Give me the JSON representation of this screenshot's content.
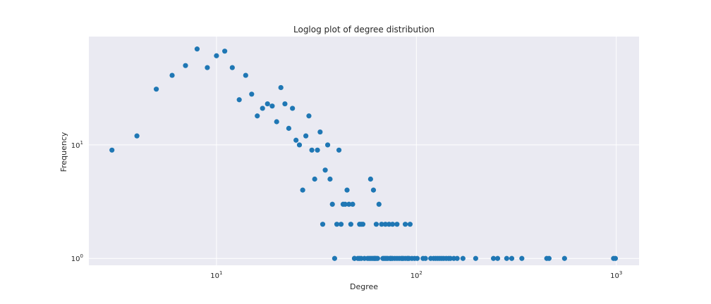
{
  "chart_data": {
    "type": "scatter",
    "title": "Loglog plot of degree distribution",
    "xlabel": "Degree",
    "ylabel": "Frequency",
    "xscale": "log",
    "yscale": "log",
    "xlim": [
      2.3,
      1300
    ],
    "ylim": [
      0.87,
      90
    ],
    "grid": true,
    "x_ticks": [
      {
        "value": 10,
        "base": "10",
        "exp": "1"
      },
      {
        "value": 100,
        "base": "10",
        "exp": "2"
      },
      {
        "value": 1000,
        "base": "10",
        "exp": "3"
      }
    ],
    "y_ticks": [
      {
        "value": 1,
        "base": "10",
        "exp": "0"
      },
      {
        "value": 10,
        "base": "10",
        "exp": "1"
      }
    ],
    "colors": {
      "marker": "#1f77b4",
      "plot_bg": "#eaeaf2",
      "grid": "#ffffff",
      "figure_bg": "#ffffff"
    },
    "series": [
      {
        "x": [
          3,
          4,
          5,
          6,
          7,
          8,
          9,
          10,
          11,
          12,
          13,
          14,
          15,
          16,
          17,
          18,
          19,
          20,
          21,
          22,
          23,
          24,
          25,
          26,
          27,
          28,
          29,
          30,
          31,
          32,
          33,
          34,
          35,
          36,
          37,
          38,
          40,
          41,
          42,
          43,
          44,
          45,
          46,
          47,
          48,
          49,
          52,
          53,
          54,
          58,
          59,
          60,
          61,
          62,
          63,
          65,
          67,
          69,
          70,
          71,
          73,
          74,
          76,
          80,
          85,
          88,
          91,
          93
        ],
        "y": [
          9,
          12,
          31,
          41,
          50,
          70,
          48,
          61,
          67,
          48,
          25,
          41,
          28,
          18,
          21,
          23,
          22,
          16,
          32,
          23,
          14,
          21,
          11,
          10,
          4,
          12,
          18,
          9,
          5,
          9,
          13,
          2,
          6,
          10,
          5,
          3,
          2,
          9,
          2,
          3,
          3,
          4,
          3,
          2,
          3,
          1,
          2,
          2,
          2,
          1,
          5,
          1,
          4,
          1,
          2,
          3,
          2,
          1,
          2,
          1,
          2,
          1,
          2,
          2,
          1,
          2,
          1,
          2
        ]
      },
      {
        "x": [
          39,
          49,
          51,
          52,
          53,
          55,
          57,
          59,
          61,
          62,
          63,
          64,
          68,
          70,
          72,
          74,
          75,
          76,
          78,
          80,
          82,
          84,
          86,
          88,
          90,
          92,
          95,
          98,
          101,
          108,
          111,
          118,
          122,
          125,
          128,
          131,
          134,
          137,
          141,
          145,
          148,
          154,
          160,
          171,
          198,
          243,
          255,
          283,
          300,
          337,
          449,
          461,
          551,
          969,
          990
        ],
        "y": [
          1,
          1,
          1,
          1,
          1,
          1,
          1,
          1,
          1,
          1,
          1,
          1,
          1,
          1,
          1,
          1,
          1,
          1,
          1,
          1,
          1,
          1,
          1,
          1,
          1,
          1,
          1,
          1,
          1,
          1,
          1,
          1,
          1,
          1,
          1,
          1,
          1,
          1,
          1,
          1,
          1,
          1,
          1,
          1,
          1,
          1,
          1,
          1,
          1,
          1,
          1,
          1,
          1,
          1,
          1
        ]
      }
    ]
  }
}
